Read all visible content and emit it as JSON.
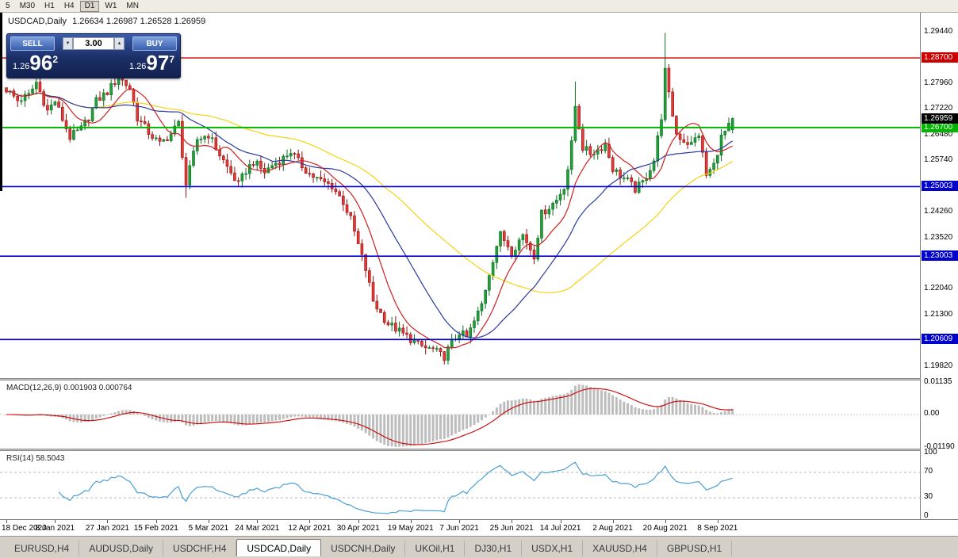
{
  "toolbar": {
    "timeframes": [
      {
        "label": "5"
      },
      {
        "label": "M30"
      },
      {
        "label": "H1"
      },
      {
        "label": "H4"
      },
      {
        "label": "D1"
      },
      {
        "label": "W1"
      },
      {
        "label": "MN"
      }
    ],
    "active": "D1"
  },
  "chart_header": {
    "symbol": "USDCAD,Daily",
    "ohlc": "1.26634 1.26987 1.26528 1.26959"
  },
  "trade_panel": {
    "sell_label": "SELL",
    "buy_label": "BUY",
    "volume": "3.00",
    "bid_prefix": "1.26",
    "bid_big": "96",
    "bid_sup": "2",
    "ask_prefix": "1.26",
    "ask_big": "97",
    "ask_sup": "7"
  },
  "macd_panel": {
    "label": "MACD(12,26,9) 0.001903 0.000764",
    "ticks": [
      {
        "v": 0.01135,
        "label": "0.01135"
      },
      {
        "v": 0,
        "label": "0.00"
      },
      {
        "v": -0.0119,
        "label": "-0.01190"
      }
    ]
  },
  "rsi_panel": {
    "label": "RSI(14) 58.5043",
    "ticks": [
      {
        "v": 100,
        "label": "100"
      },
      {
        "v": 70,
        "label": "70"
      },
      {
        "v": 30,
        "label": "30"
      },
      {
        "v": 0,
        "label": "0"
      }
    ]
  },
  "time_axis": {
    "labels": [
      {
        "text": "18 Dec 2020",
        "i": 0
      },
      {
        "text": "8 Jan 2021",
        "i": 13
      },
      {
        "text": "27 Jan 2021",
        "i": 27
      },
      {
        "text": "15 Feb 2021",
        "i": 40
      },
      {
        "text": "5 Mar 2021",
        "i": 54
      },
      {
        "text": "24 Mar 2021",
        "i": 67
      },
      {
        "text": "12 Apr 2021",
        "i": 81
      },
      {
        "text": "30 Apr 2021",
        "i": 94
      },
      {
        "text": "19 May 2021",
        "i": 108
      },
      {
        "text": "7 Jun 2021",
        "i": 121
      },
      {
        "text": "25 Jun 2021",
        "i": 135
      },
      {
        "text": "14 Jul 2021",
        "i": 148
      },
      {
        "text": "2 Aug 2021",
        "i": 162
      },
      {
        "text": "20 Aug 2021",
        "i": 176
      },
      {
        "text": "8 Sep 2021",
        "i": 190
      }
    ]
  },
  "tabs": {
    "items": [
      {
        "label": "EURUSD,H4",
        "active": false
      },
      {
        "label": "AUDUSD,Daily",
        "active": false
      },
      {
        "label": "USDCHF,H4",
        "active": false
      },
      {
        "label": "USDCAD,Daily",
        "active": true
      },
      {
        "label": "USDCNH,Daily",
        "active": false
      },
      {
        "label": "UKOil,H1",
        "active": false
      },
      {
        "label": "DJ30,H1",
        "active": false
      },
      {
        "label": "USDX,H1",
        "active": false
      },
      {
        "label": "XAUUSD,H4",
        "active": false
      },
      {
        "label": "GBPUSD,H1",
        "active": false
      }
    ]
  },
  "chart_data": {
    "type": "candlestick",
    "symbol": "USDCAD",
    "timeframe": "Daily",
    "candle_count": 195,
    "ohlc_current": {
      "open": 1.26634,
      "high": 1.26987,
      "low": 1.26528,
      "close": 1.26959
    },
    "y_axis": {
      "ticks": [
        {
          "v": 1.2944,
          "label": "1.29440"
        },
        {
          "v": 1.2796,
          "label": "1.27960"
        },
        {
          "v": 1.2722,
          "label": "1.27220"
        },
        {
          "v": 1.2648,
          "label": "1.26480"
        },
        {
          "v": 1.2574,
          "label": "1.25740"
        },
        {
          "v": 1.2426,
          "label": "1.24260"
        },
        {
          "v": 1.2352,
          "label": "1.23520"
        },
        {
          "v": 1.2204,
          "label": "1.22040"
        },
        {
          "v": 1.213,
          "label": "1.21300"
        },
        {
          "v": 1.1982,
          "label": "1.19820"
        }
      ]
    },
    "levels": [
      {
        "price": 1.287,
        "label": "1.28700",
        "color": "#cc0000",
        "width": 1.4
      },
      {
        "price": 1.267,
        "label": "1.26700",
        "color": "#00b400",
        "width": 2
      },
      {
        "price": 1.25003,
        "label": "1.25003",
        "color": "#0000cc",
        "width": 1.6
      },
      {
        "price": 1.23003,
        "label": "1.23003",
        "color": "#0000cc",
        "width": 1.6
      },
      {
        "price": 1.20609,
        "label": "1.20609",
        "color": "#0000cc",
        "width": 1.6
      }
    ],
    "current_price": {
      "value": 1.26959,
      "label": "1.26959",
      "color": "#000000"
    },
    "colors": {
      "up": "#21a038",
      "up_stroke": "#0d6b22",
      "down": "#e53935",
      "down_stroke": "#8e1212",
      "macd_hist": "#bdbdbd",
      "macd_signal": "#cc0000",
      "rsi_line": "#4a9fd4"
    },
    "moving_averages": [
      {
        "period": 55,
        "color": "#f5d312"
      },
      {
        "period": 25,
        "color": "#2b3a9e"
      },
      {
        "period": 10,
        "color": "#cc2020"
      }
    ],
    "indicators": {
      "macd": {
        "fast": 12,
        "slow": 26,
        "signal": 9,
        "value": 0.001903,
        "signal_value": 0.000764,
        "range": {
          "max": 0.01135,
          "min": -0.0119
        }
      },
      "rsi": {
        "period": 14,
        "value": 58.5043,
        "levels": [
          70,
          30
        ],
        "range": [
          0,
          100
        ]
      }
    },
    "price_anchors": [
      [
        0,
        1.278
      ],
      [
        3,
        1.2748
      ],
      [
        6,
        1.2762
      ],
      [
        8,
        1.28
      ],
      [
        11,
        1.2718
      ],
      [
        13,
        1.2746
      ],
      [
        17,
        1.2642
      ],
      [
        20,
        1.2666
      ],
      [
        22,
        1.27
      ],
      [
        24,
        1.2746
      ],
      [
        27,
        1.2772
      ],
      [
        30,
        1.2816
      ],
      [
        33,
        1.2782
      ],
      [
        35,
        1.2698
      ],
      [
        38,
        1.2656
      ],
      [
        41,
        1.2622
      ],
      [
        44,
        1.2652
      ],
      [
        46,
        1.2682
      ],
      [
        48,
        1.2506
      ],
      [
        51,
        1.2636
      ],
      [
        54,
        1.265
      ],
      [
        57,
        1.2592
      ],
      [
        59,
        1.2556
      ],
      [
        62,
        1.2506
      ],
      [
        64,
        1.2546
      ],
      [
        66,
        1.2572
      ],
      [
        69,
        1.2542
      ],
      [
        71,
        1.2562
      ],
      [
        74,
        1.2582
      ],
      [
        76,
        1.2602
      ],
      [
        78,
        1.2572
      ],
      [
        81,
        1.2536
      ],
      [
        84,
        1.2516
      ],
      [
        87,
        1.2502
      ],
      [
        90,
        1.2456
      ],
      [
        92,
        1.2406
      ],
      [
        94,
        1.2332
      ],
      [
        96,
        1.2262
      ],
      [
        98,
        1.2172
      ],
      [
        100,
        1.2136
      ],
      [
        102,
        1.2106
      ],
      [
        104,
        1.2092
      ],
      [
        106,
        1.2076
      ],
      [
        108,
        1.2062
      ],
      [
        110,
        1.2046
      ],
      [
        112,
        1.2036
      ],
      [
        114,
        1.2032
      ],
      [
        116,
        1.2016
      ],
      [
        117,
        1.2012
      ],
      [
        119,
        1.2052
      ],
      [
        121,
        1.2082
      ],
      [
        123,
        1.2066
      ],
      [
        125,
        1.2112
      ],
      [
        127,
        1.2162
      ],
      [
        129,
        1.2252
      ],
      [
        131,
        1.2332
      ],
      [
        132,
        1.2362
      ],
      [
        134,
        1.2332
      ],
      [
        135,
        1.2312
      ],
      [
        137,
        1.2346
      ],
      [
        138,
        1.2362
      ],
      [
        140,
        1.2322
      ],
      [
        141,
        1.2302
      ],
      [
        143,
        1.2422
      ],
      [
        145,
        1.2442
      ],
      [
        147,
        1.2462
      ],
      [
        149,
        1.2502
      ],
      [
        150,
        1.2552
      ],
      [
        151,
        1.2622
      ],
      [
        152,
        1.2732
      ],
      [
        154,
        1.2612
      ],
      [
        156,
        1.2596
      ],
      [
        158,
        1.2606
      ],
      [
        160,
        1.2622
      ],
      [
        162,
        1.2552
      ],
      [
        164,
        1.2532
      ],
      [
        166,
        1.2516
      ],
      [
        168,
        1.2492
      ],
      [
        170,
        1.2512
      ],
      [
        171,
        1.2532
      ],
      [
        173,
        1.2576
      ],
      [
        175,
        1.2702
      ],
      [
        176,
        1.2832
      ],
      [
        177,
        1.2762
      ],
      [
        179,
        1.2652
      ],
      [
        181,
        1.2632
      ],
      [
        183,
        1.2622
      ],
      [
        185,
        1.2652
      ],
      [
        187,
        1.2532
      ],
      [
        189,
        1.2562
      ],
      [
        191,
        1.2642
      ],
      [
        193,
        1.2672
      ],
      [
        194,
        1.26959
      ]
    ],
    "spike_overrides": [
      {
        "i": 48,
        "low": 1.2468
      },
      {
        "i": 117,
        "low": 1.1989
      },
      {
        "i": 152,
        "high": 1.2802
      },
      {
        "i": 176,
        "high": 1.2942
      }
    ]
  }
}
